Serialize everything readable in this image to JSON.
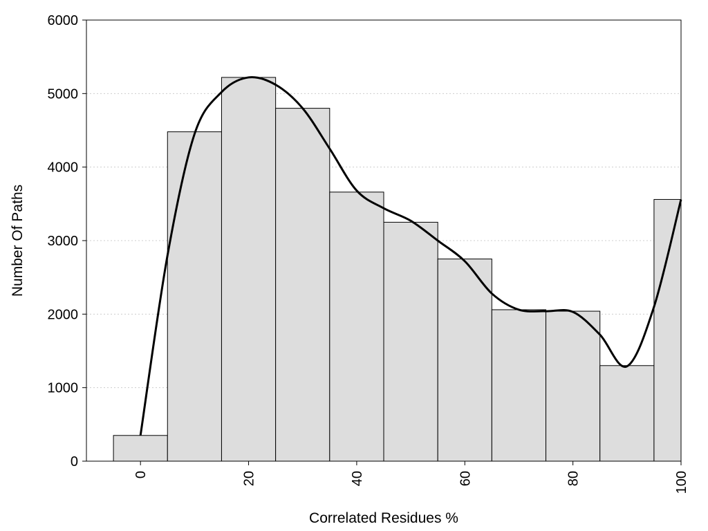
{
  "chart_data": {
    "type": "bar",
    "title": "",
    "xlabel": "Correlated Residues %",
    "ylabel": "Number Of Paths",
    "x": [
      0,
      10,
      20,
      30,
      40,
      50,
      60,
      70,
      80,
      90,
      100
    ],
    "values": [
      350,
      4480,
      5220,
      4800,
      3660,
      3250,
      2750,
      2060,
      2040,
      1300,
      3560
    ],
    "bin_width": 10,
    "xlim": [
      -10,
      100
    ],
    "ylim": [
      0,
      6000
    ],
    "xticks": [
      0,
      20,
      40,
      60,
      80,
      100
    ],
    "xtick_labels": [
      "0",
      "20",
      "40",
      "60",
      "80",
      "100"
    ],
    "yticks": [
      0,
      1000,
      2000,
      3000,
      4000,
      5000,
      6000
    ],
    "ytick_labels": [
      "0",
      "1000",
      "2000",
      "3000",
      "4000",
      "5000",
      "6000"
    ],
    "grid": "horizontal dotted",
    "bar_color": "#dddddd",
    "bar_edge_color": "#000000",
    "smooth_curve": {
      "color": "#000000",
      "x": [
        0,
        5,
        10,
        15,
        20,
        25,
        30,
        35,
        40,
        45,
        50,
        55,
        60,
        65,
        70,
        75,
        80,
        85,
        90,
        95,
        100
      ],
      "y": [
        350,
        2800,
        4450,
        5020,
        5220,
        5120,
        4800,
        4250,
        3680,
        3440,
        3270,
        3000,
        2720,
        2280,
        2060,
        2040,
        2030,
        1720,
        1290,
        2100,
        3560
      ]
    }
  }
}
